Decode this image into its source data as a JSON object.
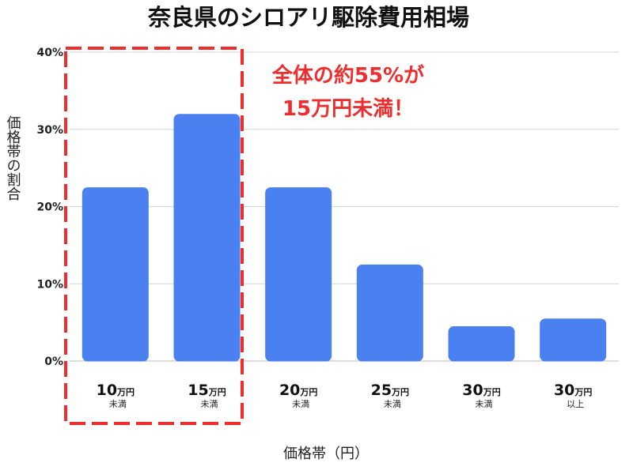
{
  "chart_data": {
    "type": "bar",
    "title": "奈良県のシロアリ駆除費用相場",
    "xlabel": "価格帯（円）",
    "ylabel": "価格帯の割合",
    "ylim": [
      0,
      40
    ],
    "yticks": [
      "0%",
      "10%",
      "20%",
      "30%",
      "40%"
    ],
    "grid": true,
    "categories": [
      {
        "main": "10",
        "unit": "万円",
        "sub": "未満"
      },
      {
        "main": "15",
        "unit": "万円",
        "sub": "未満"
      },
      {
        "main": "20",
        "unit": "万円",
        "sub": "未満"
      },
      {
        "main": "25",
        "unit": "万円",
        "sub": "未満"
      },
      {
        "main": "30",
        "unit": "万円",
        "sub": "未満"
      },
      {
        "main": "30",
        "unit": "万円",
        "sub": "以上"
      }
    ],
    "values": [
      22.5,
      32,
      22.5,
      12.5,
      4.5,
      5.5
    ],
    "bar_color": "#4a80f0",
    "annotation": {
      "lines": [
        "全体の約55%が",
        "15万円未満！"
      ],
      "color": "#ee2e2e",
      "highlighted_categories": [
        0,
        1
      ]
    }
  }
}
